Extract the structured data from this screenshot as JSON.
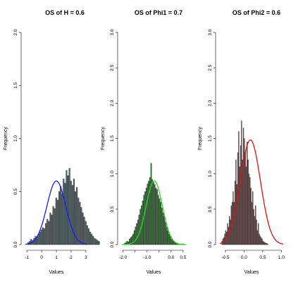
{
  "chart_data": [
    {
      "type": "histogram",
      "title": "OS of H = 0.6",
      "xlabel": "Values",
      "ylabel": "Frequency",
      "xlim": [
        -1.1,
        3.1
      ],
      "ylim": [
        0,
        2.0
      ],
      "xticks": [
        -1,
        0,
        1,
        2,
        3
      ],
      "xtick_labels": [
        "-1",
        "0",
        "1",
        "2",
        "3"
      ],
      "yticks": [
        0,
        0.5,
        1.0,
        1.5,
        2.0
      ],
      "ytick_labels": [
        "0.0",
        "0.5",
        "1.0",
        "1.5",
        "2.0"
      ],
      "bar_color": "#5a6b6e",
      "density_color": "#1a1aff",
      "bins_start": -0.95,
      "bin_width": 0.1,
      "frequencies": [
        0.02,
        0.03,
        0.05,
        0.04,
        0.06,
        0.08,
        0.07,
        0.1,
        0.12,
        0.14,
        0.16,
        0.15,
        0.2,
        0.24,
        0.22,
        0.3,
        0.28,
        0.36,
        0.34,
        0.44,
        0.42,
        0.5,
        0.55,
        0.48,
        0.62,
        0.58,
        0.7,
        0.65,
        0.72,
        0.6,
        0.56,
        0.62,
        0.5,
        0.54,
        0.44,
        0.4,
        0.35,
        0.3,
        0.26,
        0.22,
        0.18,
        0.15,
        0.12,
        0.1,
        0.08,
        0.06,
        0.05,
        0.04,
        0.03
      ],
      "density_mean": 1.0,
      "density_sd": 0.64,
      "density_peak": 0.6
    },
    {
      "type": "histogram",
      "title": "OS of Phi1 = 0.7",
      "xlabel": "Values",
      "ylabel": "Frequency",
      "xlim": [
        -2.05,
        0.62
      ],
      "ylim": [
        0,
        3.0
      ],
      "xticks": [
        -2.0,
        -1.5,
        -1.0,
        -0.5,
        0.0,
        0.5
      ],
      "xtick_labels": [
        "-2.0",
        "",
        "-1.0",
        "",
        "0.0",
        "0.5"
      ],
      "yticks": [
        0,
        0.5,
        1.0,
        1.5,
        2.0,
        2.5,
        3.0
      ],
      "ytick_labels": [
        "0.0",
        "0.5",
        "1.0",
        "1.5",
        "2.0",
        "2.5",
        "3.0"
      ],
      "bar_color": "#3f7f3f",
      "density_color": "#22dd22",
      "bins_start": -1.95,
      "bin_width": 0.05,
      "frequencies": [
        0.02,
        0.03,
        0.05,
        0.04,
        0.08,
        0.1,
        0.12,
        0.15,
        0.2,
        0.25,
        0.3,
        0.35,
        0.42,
        0.5,
        0.55,
        0.62,
        0.7,
        0.75,
        0.8,
        0.86,
        0.9,
        0.95,
        1.15,
        0.92,
        0.88,
        0.85,
        0.8,
        0.78,
        0.7,
        0.65,
        0.6,
        0.52,
        0.45,
        0.4,
        0.32,
        0.25,
        0.2,
        0.15,
        0.12,
        0.08,
        0.06,
        0.05,
        0.03,
        0.02,
        0.02,
        0.01,
        0.01,
        0.01,
        0.01,
        0.01
      ],
      "density_mean": -0.7,
      "density_sd": 0.34,
      "density_peak": 0.9
    },
    {
      "type": "histogram",
      "title": "OS of Phi2 = 0.6",
      "xlabel": "Values",
      "ylabel": "Frequency",
      "xlim": [
        -0.65,
        1.05
      ],
      "ylim": [
        0,
        3.0
      ],
      "xticks": [
        -0.5,
        0.0,
        0.5,
        1.0
      ],
      "xtick_labels": [
        "-0.5",
        "0.0",
        "0.5",
        "1.0"
      ],
      "yticks": [
        0,
        0.5,
        1.0,
        1.5,
        2.0,
        2.5,
        3.0
      ],
      "ytick_labels": [
        "0.0",
        "0.5",
        "1.0",
        "1.5",
        "2.0",
        "2.5",
        "3.0"
      ],
      "bar_color": "#8a5a5a",
      "density_color": "#dd1111",
      "bins_start": -0.6,
      "bin_width": 0.025,
      "frequencies": [
        0.05,
        0.08,
        0.1,
        0.15,
        0.2,
        0.18,
        0.3,
        0.25,
        0.4,
        0.35,
        0.55,
        0.6,
        0.75,
        0.6,
        0.9,
        1.2,
        0.85,
        1.3,
        1.6,
        1.1,
        1.4,
        1.75,
        1.2,
        1.65,
        1.5,
        1.3,
        1.1,
        1.45,
        1.2,
        1.0,
        0.95,
        0.8,
        0.6,
        0.75,
        0.5,
        0.4,
        0.55,
        0.35,
        0.2,
        0.3,
        0.15,
        0.12,
        0.1,
        0.08,
        0.05,
        0.04,
        0.03,
        0.02,
        0.02,
        0.01
      ],
      "density_mean": 0.17,
      "density_sd": 0.27,
      "density_peak": 1.48
    }
  ]
}
